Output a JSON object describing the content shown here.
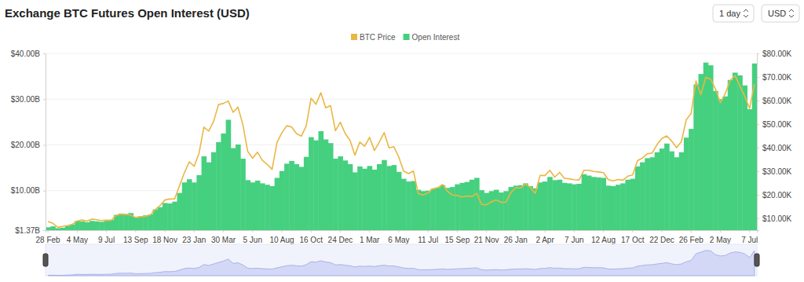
{
  "chart_data": {
    "type": "bar",
    "title": "Exchange BTC Futures Open Interest (USD)",
    "annotations": [
      "1 day",
      "USD"
    ],
    "legend": "top",
    "grid": true,
    "categories": [
      "28 Feb",
      null,
      null,
      null,
      null,
      null,
      "4 May",
      null,
      null,
      null,
      null,
      null,
      "9 Jul",
      null,
      null,
      null,
      null,
      null,
      "13 Sep",
      null,
      null,
      null,
      null,
      null,
      "18 Nov",
      null,
      null,
      null,
      null,
      null,
      "23 Jan",
      null,
      null,
      null,
      null,
      null,
      "30 Mar",
      null,
      null,
      null,
      null,
      null,
      "5 Jun",
      null,
      null,
      null,
      null,
      null,
      "10 Aug",
      null,
      null,
      null,
      null,
      null,
      "16 Oct",
      null,
      null,
      null,
      null,
      null,
      "24 Dec",
      null,
      null,
      null,
      null,
      null,
      "1 Mar",
      null,
      null,
      null,
      null,
      null,
      "6 May",
      null,
      null,
      null,
      null,
      null,
      "11 Jul",
      null,
      null,
      null,
      null,
      null,
      "15 Sep",
      null,
      null,
      null,
      null,
      null,
      "21 Nov",
      null,
      null,
      null,
      null,
      null,
      "26 Jan",
      null,
      null,
      null,
      null,
      null,
      "2 Apr",
      null,
      null,
      null,
      null,
      null,
      "7 Jun",
      null,
      null,
      null,
      null,
      null,
      "12 Aug",
      null,
      null,
      null,
      null,
      null,
      "17 Oct",
      null,
      null,
      null,
      null,
      null,
      "22 Dec",
      null,
      null,
      null,
      null,
      null,
      "26 Feb",
      null,
      null,
      null,
      null,
      null,
      "2 May",
      null,
      null,
      null,
      null,
      null,
      "7 Jul",
      null
    ],
    "series": [
      {
        "name": "BTC Price",
        "color": "#e9b744",
        "type": "line",
        "axis": "y2",
        "values": [
          8.7,
          7.9,
          6.2,
          6.6,
          6.9,
          7.5,
          8.9,
          9.3,
          8.8,
          9.7,
          9.4,
          9.1,
          9.2,
          9.2,
          11.3,
          11.8,
          11.6,
          11.4,
          10.3,
          10.7,
          10.8,
          11.4,
          13.7,
          15.5,
          17.8,
          18.2,
          18.3,
          23.8,
          29.4,
          34.0,
          32.1,
          37.6,
          48.7,
          47.0,
          51.2,
          58.3,
          58.8,
          59.8,
          55.0,
          57.2,
          49.8,
          38.4,
          35.5,
          38.1,
          34.6,
          32.9,
          30.8,
          42.2,
          46.3,
          49.3,
          48.8,
          46.0,
          44.9,
          49.2,
          61.0,
          58.4,
          63.3,
          56.9,
          57.8,
          47.2,
          50.8,
          46.0,
          43.1,
          36.8,
          42.4,
          40.6,
          44.4,
          38.8,
          42.4,
          46.4,
          39.9,
          40.4,
          36.0,
          30.1,
          29.0,
          30.1,
          20.5,
          19.9,
          20.8,
          22.6,
          23.0,
          24.4,
          21.5,
          19.9,
          19.7,
          19.1,
          19.5,
          19.3,
          20.6,
          15.9,
          15.8,
          17.0,
          17.8,
          16.8,
          16.9,
          20.9,
          23.0,
          22.9,
          24.6,
          23.2,
          20.6,
          28.2,
          28.2,
          30.4,
          27.5,
          29.5,
          27.0,
          26.8,
          26.4,
          26.3,
          30.4,
          30.4,
          29.9,
          29.7,
          29.4,
          26.4,
          25.9,
          26.5,
          26.2,
          27.9,
          28.4,
          34.5,
          35.6,
          37.4,
          37.7,
          41.3,
          43.9,
          45.0,
          42.8,
          40.0,
          42.6,
          51.8,
          54.5,
          68.3,
          62.5,
          69.8,
          69.1,
          64.9,
          59.1,
          62.9,
          68.5,
          70.6,
          66.2,
          61.8,
          56.7,
          67.0
        ]
      },
      {
        "name": "Open Interest",
        "color": "#45d07f",
        "type": "bar",
        "values": [
          2.0,
          2.2,
          1.8,
          1.9,
          2.3,
          2.6,
          3.4,
          3.3,
          3.1,
          3.4,
          3.3,
          3.2,
          3.4,
          3.6,
          4.7,
          5.0,
          4.9,
          5.1,
          4.3,
          4.4,
          4.6,
          4.8,
          5.9,
          6.4,
          7.3,
          7.2,
          7.6,
          9.5,
          11.8,
          12.5,
          11.8,
          13.4,
          17.5,
          16.2,
          18.4,
          20.6,
          22.5,
          25.5,
          19.3,
          20.1,
          17.0,
          12.3,
          11.8,
          12.2,
          11.6,
          11.3,
          11.0,
          12.8,
          14.3,
          15.9,
          16.5,
          15.8,
          15.2,
          17.4,
          21.7,
          21.0,
          23.0,
          21.2,
          20.4,
          17.0,
          17.5,
          16.6,
          15.8,
          14.0,
          15.3,
          14.8,
          15.4,
          14.6,
          15.8,
          16.7,
          15.4,
          15.6,
          14.1,
          12.6,
          12.0,
          12.1,
          10.2,
          9.9,
          10.0,
          10.4,
          10.7,
          11.2,
          10.6,
          10.8,
          11.4,
          11.7,
          11.9,
          12.4,
          12.8,
          10.1,
          9.5,
          9.9,
          10.2,
          9.6,
          9.9,
          10.8,
          11.1,
          11.2,
          11.6,
          11.0,
          10.5,
          11.8,
          12.0,
          13.0,
          12.3,
          12.4,
          11.7,
          11.6,
          11.4,
          11.5,
          13.6,
          13.3,
          13.0,
          12.9,
          12.8,
          11.1,
          11.0,
          11.3,
          11.6,
          12.4,
          12.6,
          15.3,
          16.2,
          17.1,
          17.3,
          18.4,
          19.2,
          20.3,
          18.6,
          17.3,
          18.4,
          21.6,
          23.5,
          33.2,
          35.5,
          38.0,
          37.4,
          31.8,
          30.0,
          30.6,
          34.2,
          35.8,
          35.2,
          33.0,
          27.8,
          37.8
        ]
      }
    ],
    "ylim": [
      1.37,
      40
    ],
    "yticks": [
      {
        "value": 1.37,
        "label": "$1.37B"
      },
      {
        "value": 10,
        "label": "$10.00B"
      },
      {
        "value": 20,
        "label": "$20.00B"
      },
      {
        "value": 30,
        "label": "$30.00B"
      },
      {
        "value": 40,
        "label": "$40.00B"
      }
    ],
    "y2lim": [
      5,
      80
    ],
    "y2ticks": [
      {
        "value": 10,
        "label": "$10.00K"
      },
      {
        "value": 20,
        "label": "$20.00K"
      },
      {
        "value": 30,
        "label": "$30.00K"
      },
      {
        "value": 40,
        "label": "$40.00K"
      },
      {
        "value": 50,
        "label": "$50.00K"
      },
      {
        "value": 60,
        "label": "$60.00K"
      },
      {
        "value": 70,
        "label": "$70.00K"
      },
      {
        "value": 80,
        "label": "$80.00K"
      }
    ]
  }
}
